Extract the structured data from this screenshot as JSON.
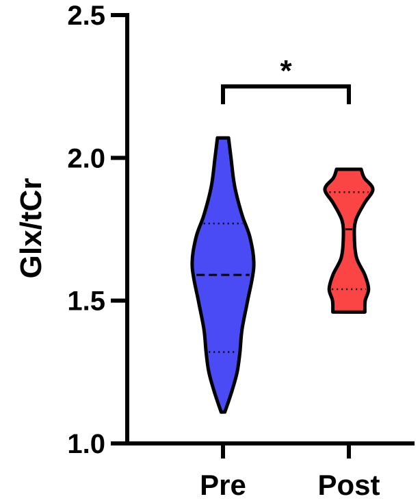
{
  "chart_data": {
    "type": "violin",
    "ylabel": "Glx/tCr",
    "ylim": [
      1.0,
      2.5
    ],
    "yticks": [
      1.0,
      1.5,
      2.0,
      2.5
    ],
    "ytick_labels": [
      "1.0",
      "1.5",
      "2.0",
      "2.5"
    ],
    "categories": [
      "Pre",
      "Post"
    ],
    "grid": false,
    "series": [
      {
        "category": "Pre",
        "color": "#4b4bf5",
        "min": 1.11,
        "max": 2.07,
        "q1": 1.32,
        "median": 1.59,
        "q3": 1.77,
        "density": [
          [
            1.11,
            0.06
          ],
          [
            1.18,
            0.28
          ],
          [
            1.25,
            0.46
          ],
          [
            1.32,
            0.55
          ],
          [
            1.4,
            0.62
          ],
          [
            1.5,
            0.8
          ],
          [
            1.62,
            1.0
          ],
          [
            1.72,
            0.88
          ],
          [
            1.8,
            0.62
          ],
          [
            1.9,
            0.38
          ],
          [
            2.0,
            0.26
          ],
          [
            2.07,
            0.18
          ]
        ]
      },
      {
        "category": "Post",
        "color": "#fb4444",
        "min": 1.46,
        "max": 1.96,
        "q1": 1.54,
        "median": 1.75,
        "q3": 1.88,
        "density": [
          [
            1.46,
            0.52
          ],
          [
            1.5,
            0.53
          ],
          [
            1.54,
            0.64
          ],
          [
            1.59,
            0.52
          ],
          [
            1.65,
            0.25
          ],
          [
            1.72,
            0.18
          ],
          [
            1.78,
            0.22
          ],
          [
            1.84,
            0.5
          ],
          [
            1.89,
            0.78
          ],
          [
            1.93,
            0.5
          ],
          [
            1.96,
            0.4
          ]
        ]
      }
    ],
    "significance": {
      "label": "*",
      "between": [
        "Pre",
        "Post"
      ],
      "y": 2.25
    }
  }
}
